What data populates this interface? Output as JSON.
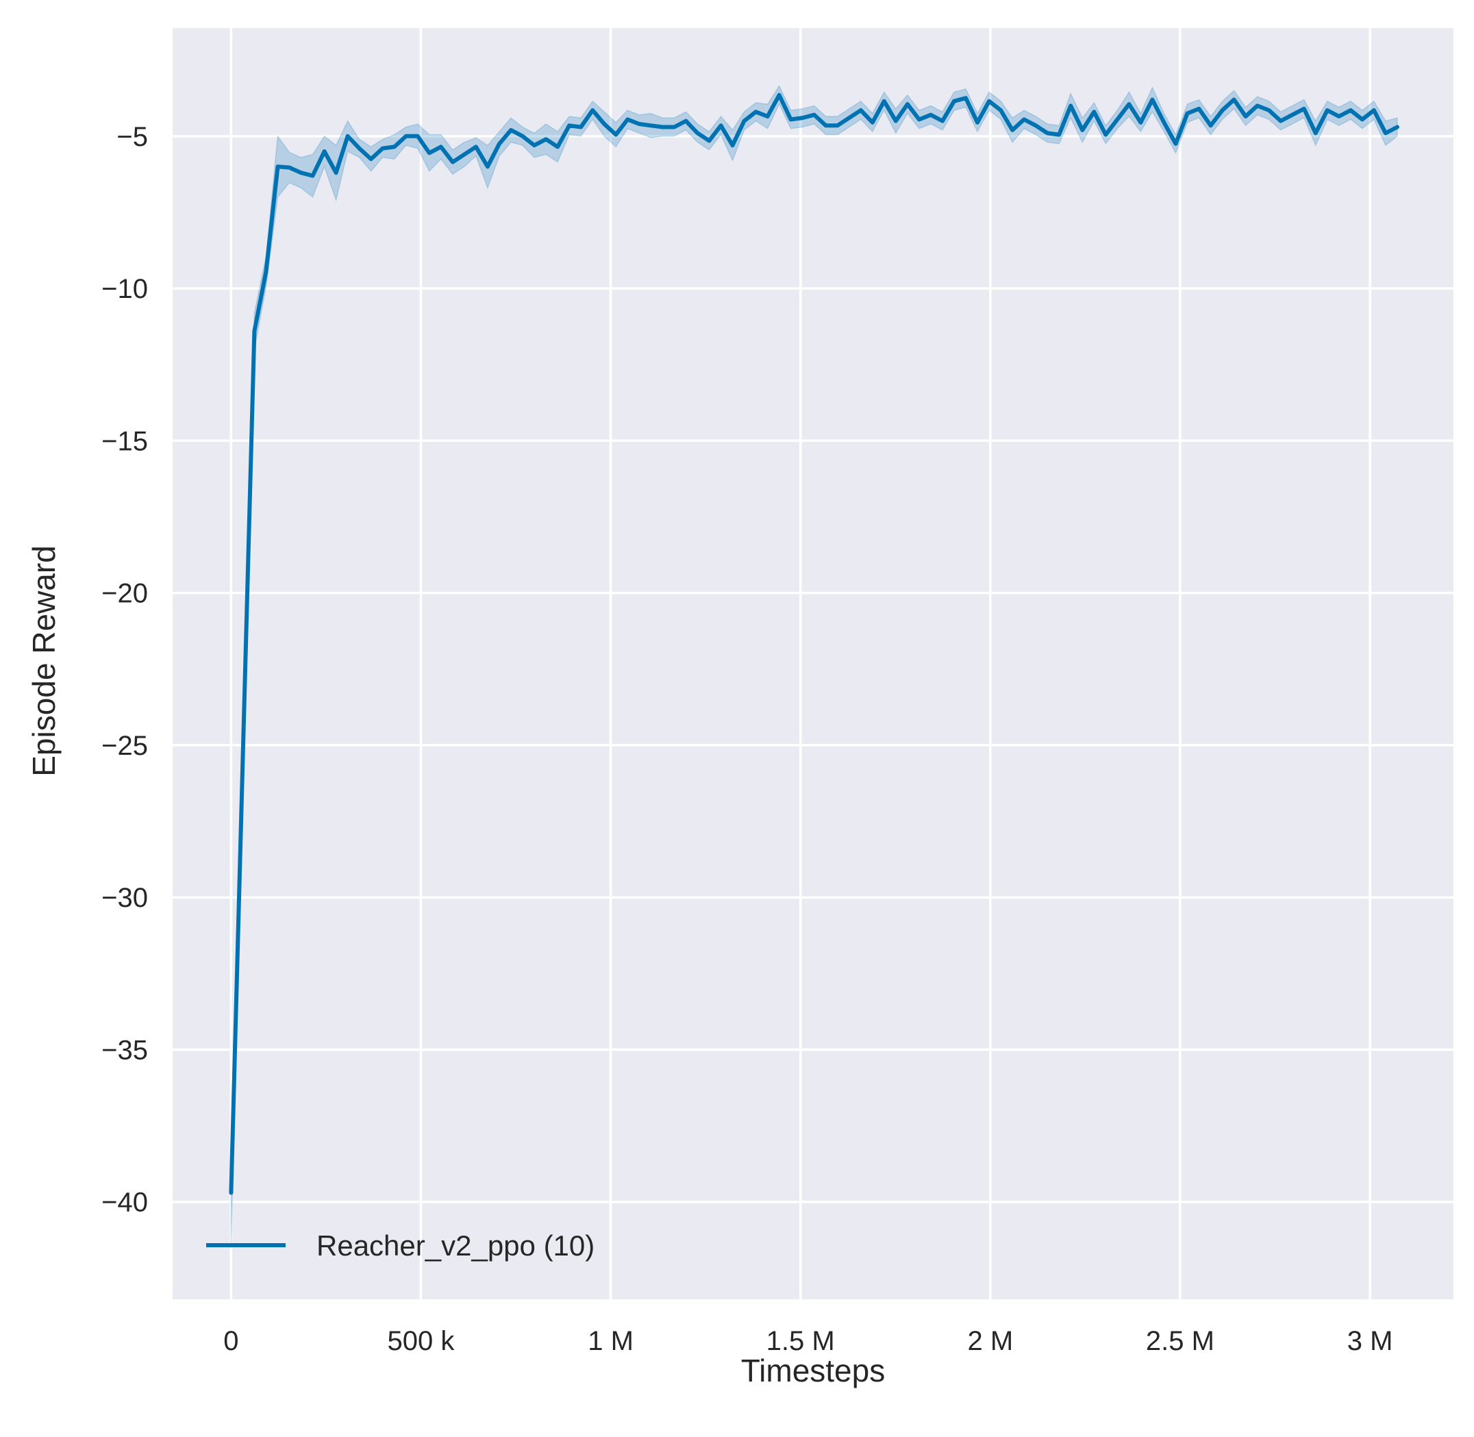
{
  "chart_data": {
    "type": "line",
    "title": "",
    "xlabel": "Timesteps",
    "ylabel": "Episode Reward",
    "xlim": [
      -154000,
      3220000
    ],
    "ylim": [
      -43.2,
      -1.45
    ],
    "grid": true,
    "legend_position": "bottom-left",
    "background_color": "#eaeaf2",
    "grid_color": "#ffffff",
    "line_color": "#0072b2",
    "x_ticks": [
      0,
      500000,
      1000000,
      1500000,
      2000000,
      2500000,
      3000000
    ],
    "x_tick_labels": [
      "0",
      "500 k",
      "1 M",
      "1.5 M",
      "2 M",
      "2.5 M",
      "3 M"
    ],
    "y_ticks": [
      -40,
      -35,
      -30,
      -25,
      -20,
      -15,
      -10,
      -5
    ],
    "y_tick_labels": [
      "−40",
      "−35",
      "−30",
      "−25",
      "−20",
      "−15",
      "−10",
      "−5"
    ],
    "series": [
      {
        "name": "Reacher_v2_ppo (10)",
        "x": [
          0,
          30720,
          61440,
          92160,
          122880,
          153600,
          184320,
          215040,
          245760,
          276480,
          307200,
          337920,
          368640,
          399360,
          430080,
          460800,
          491520,
          522240,
          552960,
          583680,
          614400,
          645120,
          675840,
          706560,
          737280,
          768000,
          798720,
          829440,
          860160,
          890880,
          921600,
          952320,
          983040,
          1013760,
          1044480,
          1075200,
          1105920,
          1136640,
          1167360,
          1198080,
          1228800,
          1259520,
          1290240,
          1320960,
          1351680,
          1382400,
          1413120,
          1443840,
          1474560,
          1505280,
          1536000,
          1566720,
          1597440,
          1628160,
          1658880,
          1689600,
          1720320,
          1751040,
          1781760,
          1812480,
          1843200,
          1873920,
          1904640,
          1935360,
          1966080,
          1996800,
          2027520,
          2058240,
          2088960,
          2119680,
          2150400,
          2181120,
          2211840,
          2242560,
          2273280,
          2304000,
          2334720,
          2365440,
          2396160,
          2426880,
          2457600,
          2488320,
          2519040,
          2549760,
          2580480,
          2611200,
          2641920,
          2672640,
          2703360,
          2734080,
          2764800,
          2795520,
          2826240,
          2856960,
          2887680,
          2918400,
          2949120,
          2979840,
          3010560,
          3041280,
          3072000
        ],
        "y": [
          -39.7,
          -25.5,
          -11.4,
          -9.45,
          -6.0,
          -6.03,
          -6.2,
          -6.3,
          -5.5,
          -6.2,
          -5.0,
          -5.4,
          -5.75,
          -5.4,
          -5.35,
          -5.0,
          -5.0,
          -5.55,
          -5.35,
          -5.85,
          -5.6,
          -5.35,
          -6.0,
          -5.25,
          -4.8,
          -5.0,
          -5.3,
          -5.1,
          -5.35,
          -4.65,
          -4.7,
          -4.15,
          -4.6,
          -4.95,
          -4.45,
          -4.6,
          -4.65,
          -4.7,
          -4.7,
          -4.5,
          -4.9,
          -5.15,
          -4.65,
          -5.3,
          -4.5,
          -4.2,
          -4.35,
          -3.65,
          -4.45,
          -4.4,
          -4.3,
          -4.65,
          -4.65,
          -4.4,
          -4.15,
          -4.55,
          -3.85,
          -4.5,
          -3.95,
          -4.45,
          -4.3,
          -4.5,
          -3.85,
          -3.75,
          -4.55,
          -3.85,
          -4.15,
          -4.8,
          -4.45,
          -4.65,
          -4.9,
          -4.95,
          -4.0,
          -4.8,
          -4.2,
          -4.95,
          -4.45,
          -3.95,
          -4.55,
          -3.8,
          -4.55,
          -5.25,
          -4.25,
          -4.1,
          -4.65,
          -4.15,
          -3.8,
          -4.35,
          -4.0,
          -4.15,
          -4.5,
          -4.3,
          -4.1,
          -4.9,
          -4.15,
          -4.35,
          -4.15,
          -4.45,
          -4.15,
          -4.9,
          -4.7
        ],
        "ci_halfwidth": [
          1.7,
          0.9,
          0.6,
          0.5,
          1.0,
          0.5,
          0.5,
          0.7,
          0.5,
          0.9,
          0.5,
          0.3,
          0.4,
          0.3,
          0.4,
          0.3,
          0.4,
          0.6,
          0.4,
          0.4,
          0.4,
          0.3,
          0.7,
          0.4,
          0.4,
          0.3,
          0.4,
          0.5,
          0.5,
          0.3,
          0.3,
          0.3,
          0.4,
          0.4,
          0.3,
          0.3,
          0.4,
          0.3,
          0.3,
          0.3,
          0.3,
          0.3,
          0.3,
          0.5,
          0.3,
          0.3,
          0.4,
          0.3,
          0.3,
          0.3,
          0.3,
          0.3,
          0.3,
          0.3,
          0.3,
          0.3,
          0.3,
          0.4,
          0.3,
          0.3,
          0.3,
          0.3,
          0.3,
          0.3,
          0.3,
          0.3,
          0.3,
          0.4,
          0.3,
          0.3,
          0.3,
          0.3,
          0.4,
          0.4,
          0.3,
          0.3,
          0.3,
          0.4,
          0.3,
          0.4,
          0.3,
          0.3,
          0.3,
          0.3,
          0.3,
          0.3,
          0.3,
          0.3,
          0.3,
          0.3,
          0.3,
          0.3,
          0.3,
          0.4,
          0.3,
          0.3,
          0.3,
          0.3,
          0.3,
          0.4,
          0.3
        ]
      }
    ]
  }
}
